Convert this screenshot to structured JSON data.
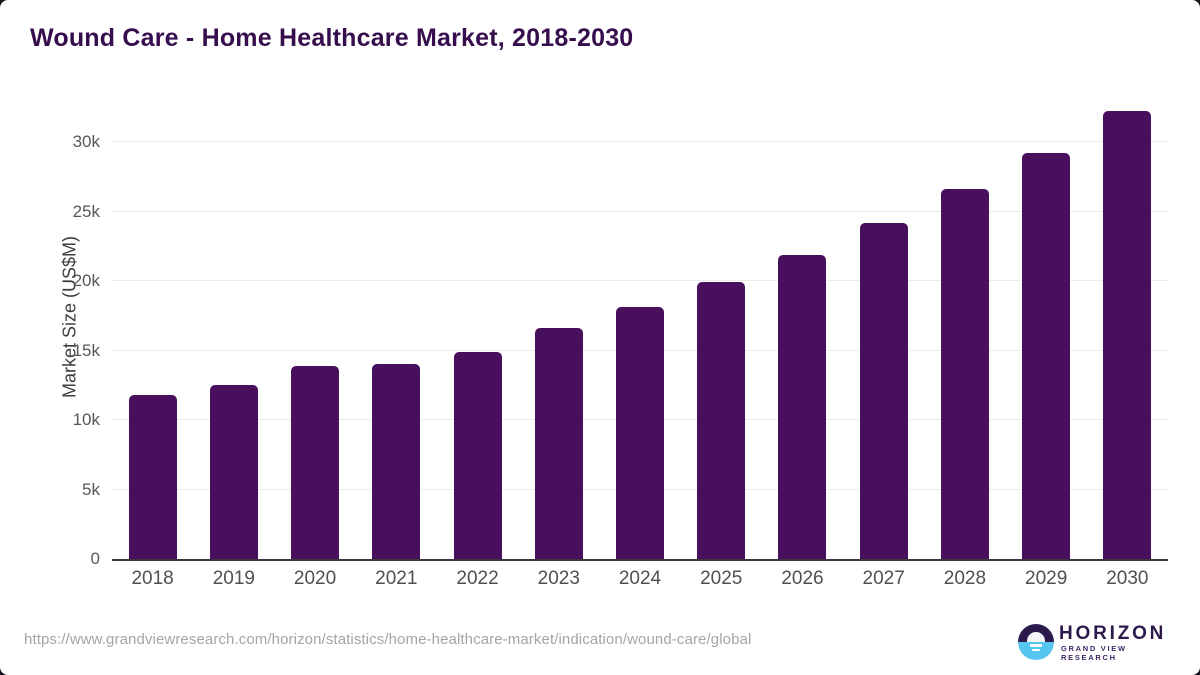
{
  "page": {
    "title": "Wound Care - Home Healthcare Market, 2018-2030"
  },
  "chart_data": {
    "type": "bar",
    "title": "Wound Care - Home Healthcare Market, 2018-2030",
    "categories": [
      "2018",
      "2019",
      "2020",
      "2021",
      "2022",
      "2023",
      "2024",
      "2025",
      "2026",
      "2027",
      "2028",
      "2029",
      "2030"
    ],
    "values": [
      11800,
      12500,
      13900,
      14000,
      14900,
      16600,
      18100,
      19950,
      21900,
      24150,
      26600,
      29200,
      32250
    ],
    "xlabel": "",
    "ylabel": "Market Size (US$M)",
    "ylim": [
      0,
      33000
    ],
    "yticks": [
      {
        "label": "0",
        "value": 0
      },
      {
        "label": "5k",
        "value": 5000
      },
      {
        "label": "10k",
        "value": 10000
      },
      {
        "label": "15k",
        "value": 15000
      },
      {
        "label": "20k",
        "value": 20000
      },
      {
        "label": "25k",
        "value": 25000
      },
      {
        "label": "30k",
        "value": 30000
      }
    ],
    "grid": "horizontal",
    "legend": "none"
  },
  "footer": {
    "source_url": "https://www.grandviewresearch.com/horizon/statistics/home-healthcare-market/indication/wound-care/global",
    "logo": {
      "name": "HORIZON",
      "subtitle": "GRAND VIEW RESEARCH"
    }
  },
  "colors": {
    "bar": "#48105c",
    "title": "#360e4d",
    "tick_label": "#55575a",
    "gridline": "#ebebeb",
    "axis_line": "#3a3a3a",
    "url_text": "#a5a5a5",
    "logo_dark": "#2d1a4d",
    "logo_blue": "#56c5f0",
    "page_background": "#13131b"
  }
}
